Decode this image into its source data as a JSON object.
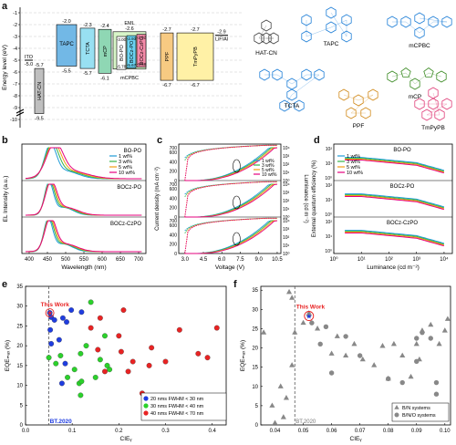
{
  "panels": {
    "a": "a",
    "b": "b",
    "c": "c",
    "d": "d",
    "e": "e",
    "f": "f"
  },
  "panel_a": {
    "ylabel": "Energy level (eV)",
    "yticks": [
      "-1",
      "-2",
      "-3",
      "-4",
      "-5",
      "-6",
      "-7",
      "-8",
      "-9",
      "-10"
    ],
    "layers": [
      {
        "name": "ITO",
        "top": "-5.0",
        "bottom": "",
        "color": "#d9d9d9"
      },
      {
        "name": "HAT-CN",
        "top": "-5.7",
        "bottom": "-9.5",
        "color": "#bfbfbf"
      },
      {
        "name": "TAPC",
        "top": "-2.0",
        "bottom": "-5.5",
        "color": "#72b8e6"
      },
      {
        "name": "TCTA",
        "top": "-2.3",
        "bottom": "-5.7",
        "color": "#98e0f2"
      },
      {
        "name": "mCP",
        "top": "-2.4",
        "bottom": "-6.1",
        "color": "#8fd7b4"
      },
      {
        "name": "mCPBC",
        "top": "-2.6",
        "bottom": "-5.75",
        "color": "#d7f5c8"
      },
      {
        "name": "BO-PO",
        "top": "-3.00",
        "bottom": "-5.78",
        "color": "#ffffff"
      },
      {
        "name": "BOCz-PO",
        "top": "-2.93",
        "bottom": "-5.67",
        "color": "#6ad2f0"
      },
      {
        "name": "BOCz-CzPO",
        "top": "-2.82",
        "bottom": "-5.58",
        "color": "#f48aa8"
      },
      {
        "name": "PPF",
        "top": "-2.7",
        "bottom": "-6.7",
        "color": "#f7ca82"
      },
      {
        "name": "TmPyPB",
        "top": "-2.7",
        "bottom": "-6.7",
        "color": "#fff1a6"
      },
      {
        "name": "LiF/Al",
        "top": "-2.9",
        "bottom": "",
        "color": "#ffffff"
      }
    ],
    "eml_label": "EML",
    "molecules": [
      "HAT-CN",
      "TAPC",
      "mCPBC",
      "mCP",
      "TCTA",
      "PPF",
      "TmPyPB"
    ]
  },
  "panel_b": {
    "xlabel": "Wavelength (nm)",
    "ylabel": "EL Intensity (a.u.)",
    "xticks": [
      "400",
      "450",
      "500",
      "550",
      "600",
      "650",
      "700"
    ],
    "subplots": [
      "BO-PO",
      "BOCz-PO",
      "BOCz-CzPO"
    ],
    "legend": [
      "1 wt%",
      "3 wt%",
      "5 wt%",
      "10 wt%"
    ],
    "colors": [
      "#1f9bd7",
      "#35b44a",
      "#f39c12",
      "#e5007e"
    ]
  },
  "panel_c": {
    "xlabel": "Voltage (V)",
    "ylabel": "Current density (mA cm⁻²)",
    "y2label": "Luminance (cd m⁻²)",
    "xticks": [
      "3.0",
      "4.5",
      "6.0",
      "7.5",
      "9.0",
      "10.5"
    ],
    "yticks": [
      "0",
      "100",
      "200",
      "300",
      "400",
      "500",
      "600",
      "700"
    ],
    "y2ticks": [
      "10⁰",
      "10¹",
      "10²",
      "10³",
      "10⁴"
    ],
    "legend": [
      "1 wt%",
      "3 wt%",
      "5 wt%",
      "10 wt%"
    ]
  },
  "panel_d": {
    "xlabel": "Luminance (cd m⁻²)",
    "ylabel": "External quantum efficiency (%)",
    "xticks": [
      "10⁰",
      "10¹",
      "10²",
      "10³",
      "10⁴"
    ],
    "yticks": [
      "10⁰",
      "10¹",
      "10²"
    ],
    "subplots": [
      "BO-PO",
      "BOCz-PO",
      "BOCz-CzPO"
    ],
    "legend": [
      "1 wt%",
      "3 wt%",
      "5 wt%",
      "10 wt%"
    ]
  },
  "chart_data": [
    {
      "type": "scatter",
      "title": "",
      "xlabel": "CIEᵧ",
      "ylabel": "EQEₘₐₓ (%)",
      "xlim": [
        0.0,
        0.43
      ],
      "ylim": [
        0,
        35
      ],
      "xticks": [
        "0.0",
        "0.1",
        "0.2",
        "0.3",
        "0.4"
      ],
      "yticks": [
        "0",
        "5",
        "10",
        "15",
        "20",
        "25",
        "30",
        "35"
      ],
      "reference_line": {
        "x": 0.05,
        "label": "BT.2020"
      },
      "annotation": "This Work",
      "legend_position": "bottom-right",
      "series": [
        {
          "name": "20 nms FWHM < 30 nm",
          "color": "#1f3de0",
          "points": [
            [
              0.052,
              28.3
            ],
            [
              0.055,
              27.2
            ],
            [
              0.062,
              26.5
            ],
            [
              0.053,
              24.0
            ],
            [
              0.08,
              27.0
            ],
            [
              0.055,
              20.5
            ],
            [
              0.072,
              21.5
            ],
            [
              0.085,
              15.5
            ],
            [
              0.078,
              10.5
            ],
            [
              0.098,
              29.0
            ],
            [
              0.088,
              26.0
            ],
            [
              0.12,
              28.5
            ]
          ]
        },
        {
          "name": "30 nms FWHM < 40 nm",
          "color": "#2bd12b",
          "points": [
            [
              0.14,
              31.0
            ],
            [
              0.05,
              17.0
            ],
            [
              0.065,
              15.5
            ],
            [
              0.075,
              17.5
            ],
            [
              0.13,
              20.0
            ],
            [
              0.105,
              14.0
            ],
            [
              0.15,
              12.0
            ],
            [
              0.18,
              14.0
            ],
            [
              0.16,
              16.5
            ],
            [
              0.118,
              18.0
            ],
            [
              0.115,
              10.5
            ],
            [
              0.118,
              7.5
            ],
            [
              0.17,
              22.5
            ],
            [
              0.12,
              11.0
            ],
            [
              0.09,
              12.0
            ],
            [
              0.175,
              15.0
            ]
          ]
        },
        {
          "name": "40 nms FWHM < 70 nm",
          "color": "#e82323",
          "points": [
            [
              0.14,
              24.5
            ],
            [
              0.16,
              27.0
            ],
            [
              0.21,
              29.0
            ],
            [
              0.2,
              22.5
            ],
            [
              0.205,
              18.5
            ],
            [
              0.23,
              16.0
            ],
            [
              0.22,
              13.5
            ],
            [
              0.27,
              19.5
            ],
            [
              0.3,
              16.0
            ],
            [
              0.25,
              8.0
            ],
            [
              0.265,
              15.0
            ],
            [
              0.33,
              24.0
            ],
            [
              0.37,
              18.0
            ],
            [
              0.41,
              24.5
            ],
            [
              0.39,
              17.0
            ],
            [
              0.155,
              19.0
            ],
            [
              0.17,
              13.5
            ]
          ]
        },
        {
          "name": "This Work",
          "color": "#e82323",
          "marker": "star",
          "points": [
            [
              0.052,
              28.3
            ]
          ]
        }
      ]
    },
    {
      "type": "scatter",
      "title": "",
      "xlabel": "CIEᵧ",
      "ylabel": "EQEₘₐₓ (%)",
      "xlim": [
        0.035,
        0.102
      ],
      "ylim": [
        0,
        36
      ],
      "xticks": [
        "0.04",
        "0.05",
        "0.06",
        "0.07",
        "0.08",
        "0.09",
        "0.10"
      ],
      "yticks": [
        "0",
        "5",
        "10",
        "15",
        "20",
        "25",
        "30",
        "35"
      ],
      "reference_line": {
        "x": 0.047,
        "label": "BT.2020"
      },
      "annotation": "This Work",
      "legend_position": "bottom-right",
      "series": [
        {
          "name": "B/N systems",
          "color": "#888888",
          "marker": "triangle",
          "points": [
            [
              0.036,
              24.0
            ],
            [
              0.039,
              5.0
            ],
            [
              0.04,
              0.5
            ],
            [
              0.042,
              10.0
            ],
            [
              0.043,
              2.0
            ],
            [
              0.044,
              7.0
            ],
            [
              0.045,
              34.5
            ],
            [
              0.046,
              33.0
            ],
            [
              0.046,
              15.5
            ],
            [
              0.047,
              24.0
            ],
            [
              0.05,
              26.5
            ],
            [
              0.052,
              29.0
            ],
            [
              0.055,
              25.0
            ],
            [
              0.06,
              18.5
            ],
            [
              0.062,
              23.0
            ],
            [
              0.065,
              18.0
            ],
            [
              0.068,
              21.0
            ],
            [
              0.071,
              17.0
            ],
            [
              0.075,
              15.5
            ],
            [
              0.078,
              20.5
            ],
            [
              0.08,
              12.0
            ],
            [
              0.082,
              21.0
            ],
            [
              0.085,
              18.0
            ],
            [
              0.088,
              12.5
            ],
            [
              0.09,
              21.0
            ],
            [
              0.091,
              17.0
            ],
            [
              0.092,
              24.5
            ],
            [
              0.095,
              26.0
            ],
            [
              0.098,
              21.0
            ],
            [
              0.1,
              24.5
            ],
            [
              0.101,
              27.5
            ]
          ]
        },
        {
          "name": "B/N/O systems",
          "color": "#888888",
          "marker": "circle",
          "points": [
            [
              0.052,
              28.5
            ],
            [
              0.053,
              26.5
            ],
            [
              0.058,
              25.5
            ],
            [
              0.056,
              21.0
            ],
            [
              0.06,
              13.5
            ],
            [
              0.065,
              23.0
            ],
            [
              0.07,
              18.0
            ],
            [
              0.08,
              12.0
            ],
            [
              0.085,
              11.0
            ],
            [
              0.09,
              22.5
            ],
            [
              0.09,
              16.5
            ],
            [
              0.092,
              24.0
            ],
            [
              0.095,
              22.5
            ],
            [
              0.097,
              11.0
            ],
            [
              0.097,
              8.0
            ]
          ]
        },
        {
          "name": "This Work",
          "color": "#e82323",
          "marker": "star",
          "points": [
            [
              0.052,
              28.3
            ]
          ]
        }
      ]
    }
  ]
}
